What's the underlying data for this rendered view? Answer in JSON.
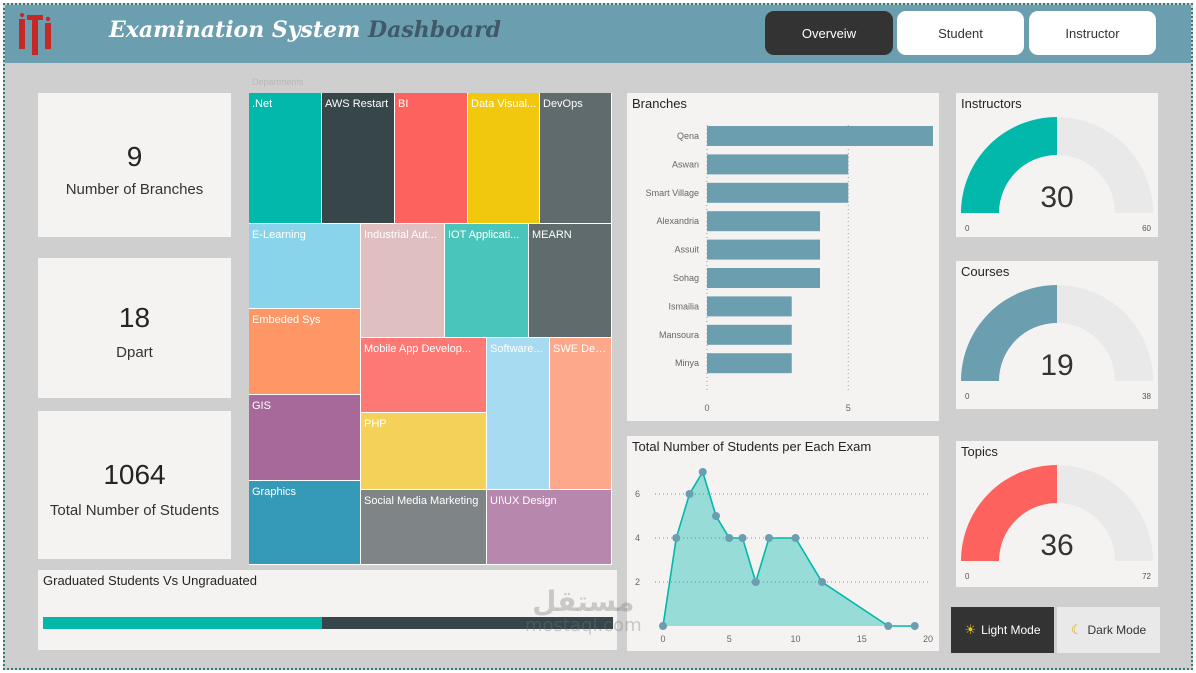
{
  "header": {
    "title_main": "Examination System",
    "title_accent": "Dashboard",
    "logo_text": "iTi",
    "nav": [
      {
        "label": "Overveiw",
        "active": true
      },
      {
        "label": "Student",
        "active": false
      },
      {
        "label": "Instructor",
        "active": false
      }
    ]
  },
  "kpis": {
    "branches": {
      "value": "9",
      "label": "Number of Branches"
    },
    "departments": {
      "value": "18",
      "label": "Dpart"
    },
    "students": {
      "value": "1064",
      "label": "Total Number of Students"
    }
  },
  "colors": {
    "header": "#6b9fb0",
    "teal": "#01b8aa",
    "bar": "#6b9fb0",
    "red": "#fd625e",
    "dark": "#374649",
    "gauge_track": "#e9e9e9"
  },
  "chart_data": [
    {
      "type": "treemap",
      "title": "Departments",
      "items": [
        {
          "label": ".Net",
          "color": "#01b8aa"
        },
        {
          "label": "AWS Restart",
          "color": "#374649"
        },
        {
          "label": "BI",
          "color": "#fd625e"
        },
        {
          "label": "Data Visual...",
          "color": "#f2c80f"
        },
        {
          "label": "DevOps",
          "color": "#5f6b6d"
        },
        {
          "label": "E-Learning",
          "color": "#8ad4eb"
        },
        {
          "label": "Industrial Aut...",
          "color": "#dfbfbf"
        },
        {
          "label": "IOT Applicati...",
          "color": "#4ac5bb"
        },
        {
          "label": "MEARN",
          "color": "#5f6b6d"
        },
        {
          "label": "Embeded Sys",
          "color": "#fe9666"
        },
        {
          "label": "Mobile App Develop...",
          "color": "#fd7976"
        },
        {
          "label": "Software...",
          "color": "#a6dbf2"
        },
        {
          "label": "SWE Dev...",
          "color": "#fea88b"
        },
        {
          "label": "GIS",
          "color": "#a66999"
        },
        {
          "label": "PHP",
          "color": "#f4d25a"
        },
        {
          "label": "Graphics",
          "color": "#3599b8"
        },
        {
          "label": "Social Media Marketing",
          "color": "#7f8587"
        },
        {
          "label": "UI\\UX Design",
          "color": "#b887ad"
        }
      ]
    },
    {
      "type": "bar",
      "orientation": "horizontal",
      "title": "Branches",
      "categories": [
        "Qena",
        "Aswan",
        "Smart Village",
        "Alexandria",
        "Assuit",
        "Sohag",
        "Ismailia",
        "Mansoura",
        "Minya"
      ],
      "values": [
        8,
        5,
        5,
        4,
        4,
        4,
        3,
        3,
        3
      ],
      "xlim": [
        0,
        8
      ],
      "xticks": [
        "0",
        "5"
      ],
      "grid": true
    },
    {
      "type": "area",
      "title": "Total Number of Students per Each Exam",
      "x": [
        0,
        1,
        2,
        3,
        4,
        5,
        6,
        7,
        8,
        10,
        12,
        17,
        19
      ],
      "y": [
        0,
        4,
        6,
        7,
        5,
        4,
        4,
        2,
        4,
        4,
        2,
        0,
        0
      ],
      "xlim": [
        0,
        20
      ],
      "ylim": [
        0,
        7
      ],
      "xticks": [
        "0",
        "5",
        "10",
        "15",
        "20"
      ],
      "yticks": [
        "6",
        "4",
        "2"
      ]
    },
    {
      "type": "gauge",
      "title": "Instructors",
      "value": 30,
      "min": 0,
      "max": 60,
      "value_label": "30",
      "min_label": "0",
      "max_label": "60",
      "color": "#01b8aa"
    },
    {
      "type": "gauge",
      "title": "Courses",
      "value": 19,
      "min": 0,
      "max": 38,
      "value_label": "19",
      "min_label": "0",
      "max_label": "38",
      "color": "#6b9fb0"
    },
    {
      "type": "gauge",
      "title": "Topics",
      "value": 36,
      "min": 0,
      "max": 72,
      "value_label": "36",
      "min_label": "0",
      "max_label": "72",
      "color": "#fd625e"
    },
    {
      "type": "bar",
      "orientation": "stacked-horizontal",
      "title": "Graduated Students Vs Ungraduated",
      "values": [
        0.49,
        0.51
      ],
      "colors": [
        "#01b8aa",
        "#374649"
      ]
    }
  ],
  "modes": {
    "light": {
      "icon": "sun-icon",
      "label": "Light Mode"
    },
    "dark": {
      "icon": "moon-icon",
      "label": "Dark Mode"
    }
  },
  "watermark": {
    "line1": "مستقل",
    "line2": "mostaql.com"
  }
}
